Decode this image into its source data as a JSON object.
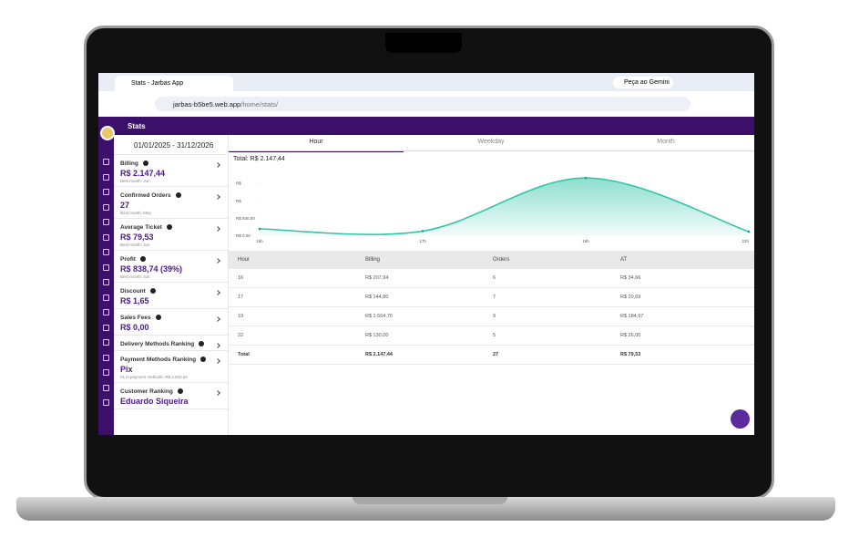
{
  "browser": {
    "tab_title": "Stats - Jarbas App",
    "gemini": "Peça ao Gemini",
    "url_host": "jarbas-b5be5.web.app",
    "url_path": "/home/stats/"
  },
  "app": {
    "title": "Stats",
    "date_range": "01/01/2025 - 31/12/2026"
  },
  "cards": [
    {
      "label": "Billing",
      "value": "R$ 2.147,44",
      "note": "Best month: Jun"
    },
    {
      "label": "Confirmed Orders",
      "value": "27",
      "note": "Best month: May"
    },
    {
      "label": "Average Ticket",
      "value": "R$ 79,53",
      "note": "Best month: Jun"
    },
    {
      "label": "Profit",
      "value": "R$ 838,74 (39%)",
      "note": "Best month: Jun"
    },
    {
      "label": "Discount",
      "value": "R$ 1,65"
    },
    {
      "label": "Sales Fees",
      "value": "R$ 0,00"
    },
    {
      "label": "Delivery Methods Ranking"
    },
    {
      "label": "Payment Methods Ranking",
      "value": "Pix",
      "note": "#1 in payment methods: R$ 1.000,64"
    },
    {
      "label": "Customer Ranking",
      "value": "Eduardo Siqueira"
    }
  ],
  "tabs": [
    "Hour",
    "Weekday",
    "Month"
  ],
  "total": "Total: R$ 2.147,44",
  "chart_data": {
    "type": "area",
    "categories": [
      "16h",
      "17h",
      "19h",
      "22h"
    ],
    "values": [
      207.94,
      144.8,
      1664.7,
      130
    ],
    "color": "#2ec4a6",
    "ylim": [
      0,
      1800
    ],
    "yticks": [
      {
        "value": 0,
        "label": "R$ 0,00"
      },
      {
        "value": 500,
        "label": "R$ 500,00"
      },
      {
        "value": 1000,
        "label": "R$"
      },
      {
        "value": 1500,
        "label": "R$"
      }
    ]
  },
  "table": {
    "header": [
      "Hour",
      "Billing",
      "Orders",
      "AT"
    ],
    "rows": [
      [
        "16",
        "R$ 207,94",
        "6",
        "R$ 34,66"
      ],
      [
        "17",
        "R$ 144,80",
        "7",
        "R$ 20,69"
      ],
      [
        "19",
        "R$ 1.664,70",
        "9",
        "R$ 184,97"
      ],
      [
        "22",
        "R$ 130,00",
        "5",
        "R$ 26,00"
      ],
      [
        "Total",
        "R$ 2.147,44",
        "27",
        "R$ 79,53"
      ]
    ]
  }
}
